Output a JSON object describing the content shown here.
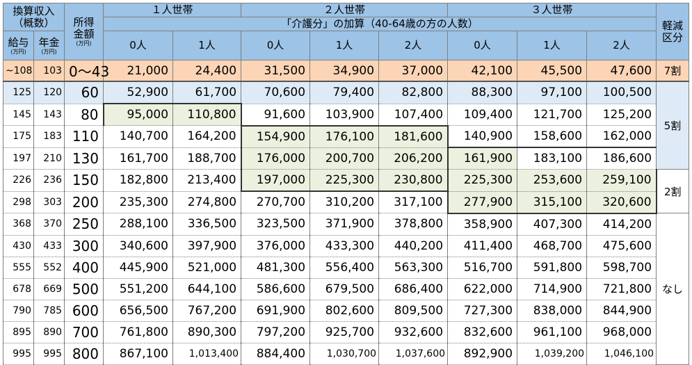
{
  "header": {
    "income": "換算収入",
    "income_note": "（概数）",
    "salary": "給与",
    "pension": "年金",
    "unit": "(万円)",
    "shotoku": "所得",
    "kingaku": "金額",
    "household_1": "１人世帯",
    "household_2": "２人世帯",
    "household_3": "３人世帯",
    "kaigo": "「介護分」の加算（40-64歳の方の人数）",
    "reduction": "軽減",
    "reduction_2": "区分",
    "persons": [
      "0人",
      "1人",
      "0人",
      "1人",
      "2人",
      "0人",
      "1人",
      "2人"
    ]
  },
  "table": {
    "rows": [
      [
        "~108",
        "103",
        "0～43",
        "21,000",
        "24,400",
        "31,500",
        "34,900",
        "37,000",
        "42,100",
        "45,500",
        "47,600"
      ],
      [
        "125",
        "120",
        "60",
        "52,900",
        "61,700",
        "70,600",
        "79,400",
        "82,800",
        "88,300",
        "97,100",
        "100,500"
      ],
      [
        "145",
        "143",
        "80",
        "95,000",
        "110,800",
        "91,600",
        "103,900",
        "107,400",
        "109,400",
        "121,700",
        "125,200"
      ],
      [
        "175",
        "183",
        "110",
        "140,700",
        "164,200",
        "154,900",
        "176,100",
        "181,600",
        "140,900",
        "158,600",
        "162,000"
      ],
      [
        "197",
        "210",
        "130",
        "161,700",
        "188,700",
        "176,000",
        "200,700",
        "206,200",
        "161,900",
        "183,100",
        "186,600"
      ],
      [
        "226",
        "236",
        "150",
        "182,800",
        "213,400",
        "197,000",
        "225,300",
        "230,800",
        "225,300",
        "253,600",
        "259,100"
      ],
      [
        "298",
        "303",
        "200",
        "235,300",
        "274,800",
        "270,700",
        "310,200",
        "317,100",
        "277,900",
        "315,100",
        "320,600"
      ],
      [
        "368",
        "370",
        "250",
        "288,100",
        "336,500",
        "323,500",
        "371,900",
        "378,800",
        "358,900",
        "407,300",
        "414,200"
      ],
      [
        "430",
        "433",
        "300",
        "340,600",
        "397,900",
        "376,000",
        "433,300",
        "440,200",
        "411,400",
        "468,700",
        "475,600"
      ],
      [
        "555",
        "552",
        "400",
        "445,900",
        "521,000",
        "481,300",
        "556,400",
        "563,300",
        "516,700",
        "591,800",
        "598,700"
      ],
      [
        "678",
        "669",
        "500",
        "551,200",
        "644,100",
        "586,600",
        "679,500",
        "686,400",
        "622,000",
        "714,900",
        "721,800"
      ],
      [
        "790",
        "785",
        "600",
        "656,500",
        "767,200",
        "691,900",
        "802,600",
        "809,500",
        "727,300",
        "838,000",
        "844,900"
      ],
      [
        "895",
        "890",
        "700",
        "761,800",
        "890,300",
        "797,200",
        "925,700",
        "932,600",
        "832,600",
        "961,100",
        "968,000"
      ],
      [
        "995",
        "995",
        "800",
        "867,100",
        "1,013,400",
        "884,400",
        "1,030,700",
        "1,037,600",
        "892,900",
        "1,039,200",
        "1,046,100"
      ]
    ],
    "reductions": [
      "7割",
      "5割",
      "2割",
      "なし"
    ]
  }
}
